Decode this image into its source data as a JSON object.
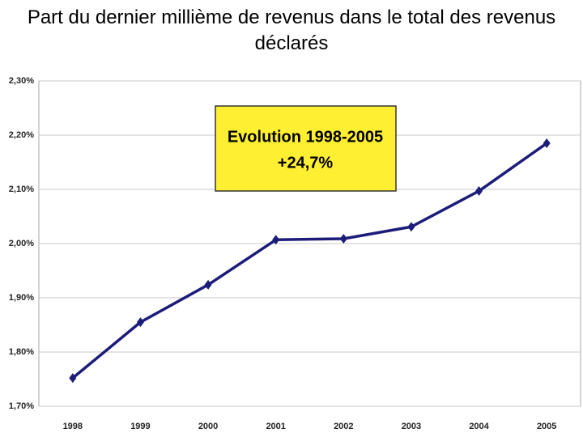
{
  "chart_data": {
    "type": "line",
    "title": "Part du dernier millième de revenus dans le total des revenus déclarés",
    "categories": [
      "1998",
      "1999",
      "2000",
      "2001",
      "2002",
      "2003",
      "2004",
      "2005"
    ],
    "series": [
      {
        "color": "#1c1c7a",
        "values": [
          1.752,
          1.855,
          1.924,
          2.007,
          2.009,
          2.031,
          2.097,
          2.185
        ]
      }
    ],
    "ylim": [
      1.7,
      2.3
    ],
    "yticks": [
      {
        "value": 1.7,
        "label": "1,70%"
      },
      {
        "value": 1.8,
        "label": "1,80%"
      },
      {
        "value": 1.9,
        "label": "1,90%"
      },
      {
        "value": 2.0,
        "label": "2,00%"
      },
      {
        "value": 2.1,
        "label": "2,10%"
      },
      {
        "value": 2.2,
        "label": "2,20%"
      },
      {
        "value": 2.3,
        "label": "2,30%"
      }
    ],
    "grid": true,
    "annotations": [
      "Evolution 1998-2005",
      "+24,7%"
    ]
  }
}
